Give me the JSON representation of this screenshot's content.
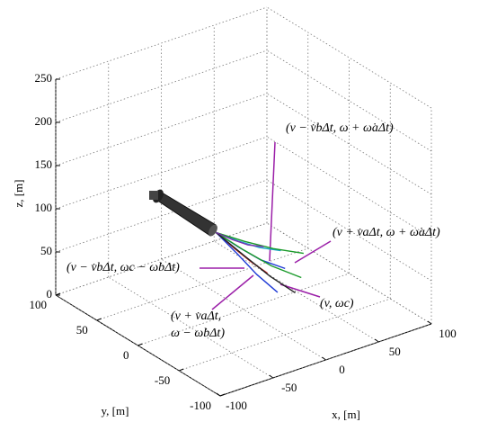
{
  "chart_data": {
    "type": "line3d",
    "xlabel": "x, [m]",
    "ylabel": "y, [m]",
    "zlabel": "z, [m]",
    "xlim": [
      -100,
      100
    ],
    "ylim": [
      -100,
      100
    ],
    "zlim": [
      0,
      250
    ],
    "xticks": [
      -100,
      -50,
      0,
      50,
      100
    ],
    "yticks": [
      -100,
      -50,
      0,
      50,
      100
    ],
    "zticks": [
      0,
      50,
      100,
      150,
      200,
      250
    ],
    "grid": true,
    "series": [
      {
        "color": "#1f3bd6",
        "x": [
          -26,
          -8,
          10,
          30
        ],
        "y": [
          0,
          -4,
          -8,
          -12
        ],
        "z": [
          100,
          78,
          58,
          42
        ]
      },
      {
        "color": "#1a9a2a",
        "x": [
          -26,
          -6,
          14,
          36
        ],
        "y": [
          0,
          -8,
          -16,
          -24
        ],
        "z": [
          100,
          76,
          54,
          36
        ]
      },
      {
        "color": "#d12020",
        "x": [
          -26,
          -10,
          4,
          18
        ],
        "y": [
          0,
          -2,
          -4,
          -6
        ],
        "z": [
          100,
          76,
          56,
          38
        ]
      },
      {
        "color": "#17a3c9",
        "x": [
          -26,
          -4,
          18,
          40
        ],
        "y": [
          0,
          2,
          4,
          6
        ],
        "z": [
          100,
          80,
          62,
          48
        ]
      },
      {
        "color": "#1f3bd6",
        "x": [
          -26,
          -12,
          0,
          12
        ],
        "y": [
          0,
          -8,
          -16,
          -26
        ],
        "z": [
          100,
          74,
          50,
          30
        ]
      },
      {
        "color": "#1a9a2a",
        "x": [
          -26,
          -2,
          22,
          46
        ],
        "y": [
          0,
          -4,
          -8,
          -14
        ],
        "z": [
          100,
          82,
          66,
          54
        ]
      },
      {
        "color": "#222222",
        "x": [
          -26,
          -8,
          8,
          24
        ],
        "y": [
          0,
          -12,
          -22,
          -32
        ],
        "z": [
          100,
          72,
          48,
          28
        ]
      },
      {
        "color": "#7a2fb0",
        "x": [
          -26,
          -6,
          12,
          30
        ],
        "y": [
          0,
          6,
          10,
          14
        ],
        "z": [
          100,
          80,
          64,
          52
        ]
      }
    ],
    "annotations": [
      {
        "lines": [
          "(v − v̇bΔt, ω + ω̇aΔt)"
        ]
      },
      {
        "lines": [
          "(v + v̇aΔt, ω + ω̇aΔt)"
        ]
      },
      {
        "lines": [
          "(v − v̇bΔt, ωc − ω̇bΔt)"
        ]
      },
      {
        "lines": [
          "(v + v̇aΔt,",
          "ω − ω̇bΔt)"
        ]
      },
      {
        "lines": [
          "(v, ωc)"
        ]
      }
    ]
  }
}
